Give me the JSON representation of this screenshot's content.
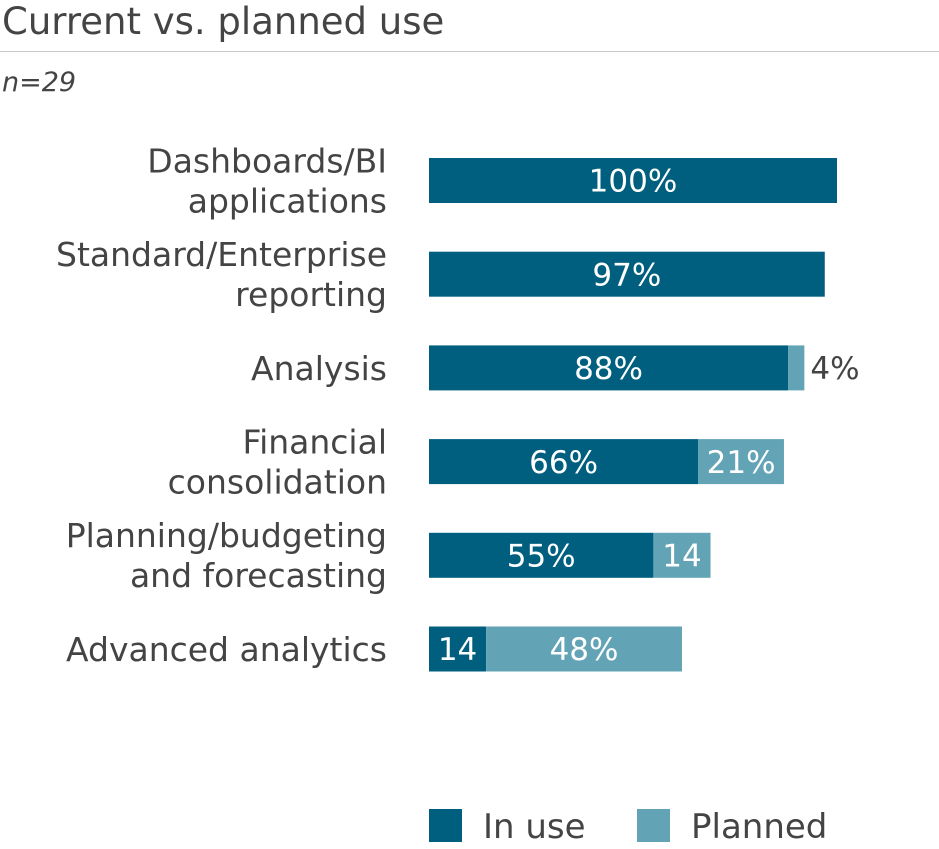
{
  "chart_data": {
    "type": "bar",
    "orientation": "horizontal",
    "stacked": true,
    "title": "Current vs. planned use",
    "subtitle": "n=29",
    "categories": [
      [
        "Dashboards/BI",
        "applications"
      ],
      [
        "Standard/Enterprise",
        "reporting"
      ],
      [
        "Analysis"
      ],
      [
        "Financial",
        "consolidation"
      ],
      [
        "Planning/budgeting",
        "and forecasting"
      ],
      [
        "Advanced analytics"
      ]
    ],
    "series": [
      {
        "name": "In use",
        "color": "#005f7f",
        "values": [
          100,
          97,
          88,
          66,
          55,
          14
        ],
        "labels": [
          "100%",
          "97%",
          "88%",
          "66%",
          "55%",
          "14"
        ]
      },
      {
        "name": "Planned",
        "color": "#63a3b6",
        "values": [
          0,
          0,
          4,
          21,
          14,
          48
        ],
        "labels": [
          "",
          "",
          "4%",
          "21%",
          "14",
          "48%"
        ]
      }
    ],
    "xlim": [
      0,
      100
    ],
    "grid": false,
    "legend": "bottom-right"
  }
}
